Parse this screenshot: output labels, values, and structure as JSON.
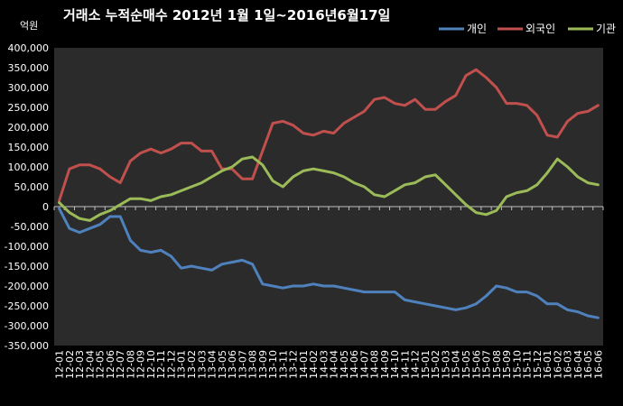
{
  "chart_data": {
    "type": "line",
    "title": "거래소 누적순매수 2012년 1월 1일~2016년6월17일",
    "unit_label": "억원",
    "ylim": [
      -350000,
      400000
    ],
    "y_ticks": [
      400000,
      350000,
      300000,
      250000,
      200000,
      150000,
      100000,
      50000,
      0,
      -50000,
      -100000,
      -150000,
      -200000,
      -250000,
      -300000,
      -350000
    ],
    "y_tick_labels": [
      "400,000",
      "350,000",
      "300,000",
      "250,000",
      "200,000",
      "150,000",
      "100,000",
      "50,000",
      "0",
      "-50,000",
      "-100,000",
      "-150,000",
      "-200,000",
      "-250,000",
      "-300,000",
      "-350,000"
    ],
    "categories": [
      "12-01",
      "12-02",
      "12-03",
      "12-04",
      "12-05",
      "12-06",
      "12-07",
      "12-08",
      "12-09",
      "12-10",
      "12-11",
      "12-12",
      "13-01",
      "13-02",
      "13-03",
      "13-04",
      "13-05",
      "13-06",
      "13-07",
      "13-08",
      "13-09",
      "13-10",
      "13-11",
      "13-12",
      "14-01",
      "14-02",
      "14-03",
      "14-04",
      "14-05",
      "14-06",
      "14-07",
      "14-08",
      "14-09",
      "14-10",
      "14-11",
      "14-12",
      "15-01",
      "15-02",
      "15-03",
      "15-04",
      "15-05",
      "15-06",
      "15-07",
      "15-08",
      "15-09",
      "15-10",
      "15-11",
      "15-12",
      "16-01",
      "16-02",
      "16-03",
      "16-04",
      "16-05",
      "16-06"
    ],
    "grid": false,
    "legend_position": "top-right",
    "series": [
      {
        "name": "개인",
        "color": "#4F81BD",
        "values": [
          -5000,
          -55000,
          -65000,
          -55000,
          -45000,
          -25000,
          -25000,
          -85000,
          -110000,
          -115000,
          -110000,
          -125000,
          -155000,
          -150000,
          -155000,
          -160000,
          -145000,
          -140000,
          -135000,
          -145000,
          -195000,
          -200000,
          -205000,
          -200000,
          -200000,
          -195000,
          -200000,
          -200000,
          -205000,
          -210000,
          -215000,
          -215000,
          -215000,
          -215000,
          -235000,
          -240000,
          -245000,
          -250000,
          -255000,
          -260000,
          -255000,
          -245000,
          -225000,
          -200000,
          -205000,
          -215000,
          -215000,
          -225000,
          -245000,
          -245000,
          -260000,
          -265000,
          -275000,
          -280000
        ]
      },
      {
        "name": "외국인",
        "color": "#C0504D",
        "values": [
          15000,
          95000,
          105000,
          105000,
          95000,
          75000,
          60000,
          115000,
          135000,
          145000,
          135000,
          145000,
          160000,
          160000,
          140000,
          140000,
          95000,
          95000,
          70000,
          70000,
          140000,
          210000,
          215000,
          205000,
          185000,
          180000,
          190000,
          185000,
          210000,
          225000,
          240000,
          270000,
          275000,
          260000,
          255000,
          270000,
          245000,
          245000,
          265000,
          280000,
          330000,
          345000,
          325000,
          300000,
          260000,
          260000,
          255000,
          230000,
          180000,
          175000,
          215000,
          235000,
          240000,
          255000
        ]
      },
      {
        "name": "기관",
        "color": "#9BBB59",
        "values": [
          10000,
          -15000,
          -30000,
          -35000,
          -20000,
          -10000,
          5000,
          20000,
          20000,
          15000,
          25000,
          30000,
          40000,
          50000,
          60000,
          75000,
          90000,
          100000,
          120000,
          125000,
          105000,
          65000,
          50000,
          75000,
          90000,
          95000,
          90000,
          85000,
          75000,
          60000,
          50000,
          30000,
          25000,
          40000,
          55000,
          60000,
          75000,
          80000,
          55000,
          30000,
          5000,
          -15000,
          -20000,
          -10000,
          25000,
          35000,
          40000,
          55000,
          85000,
          120000,
          100000,
          75000,
          60000,
          55000
        ]
      }
    ]
  }
}
